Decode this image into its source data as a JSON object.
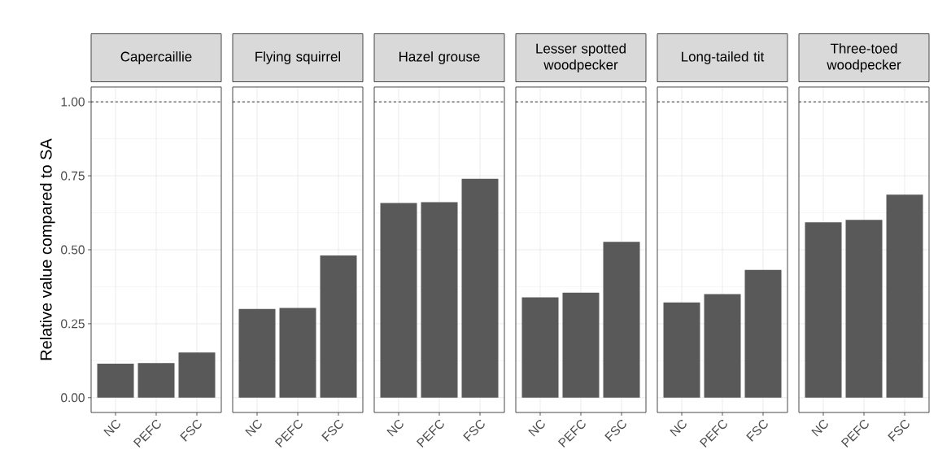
{
  "chart_data": [
    {
      "type": "bar",
      "title": "Capercaillie",
      "ylabel": "Relative value compared to SA",
      "categories": [
        "NC",
        "PEFC",
        "FSC"
      ],
      "values": [
        0.115,
        0.117,
        0.153
      ],
      "color": "#595959",
      "ylim": [
        -0.05,
        1.05
      ],
      "yticks": [
        {
          "value": 0,
          "label": "0.00"
        },
        {
          "value": 0.25,
          "label": "0.25"
        },
        {
          "value": 0.5,
          "label": "0.50"
        },
        {
          "value": 0.75,
          "label": "0.75"
        },
        {
          "value": 1,
          "label": "1.00"
        }
      ],
      "grid": true,
      "ref_lines": [
        {
          "axis": "y",
          "value": 1,
          "line_style": "dashed",
          "color": "#000000"
        }
      ]
    },
    {
      "type": "bar",
      "title": "Flying squirrel",
      "categories": [
        "NC",
        "PEFC",
        "FSC"
      ],
      "values": [
        0.3,
        0.303,
        0.481
      ],
      "color": "#595959",
      "ylim": [
        -0.05,
        1.05
      ],
      "yticks": [
        {
          "value": 0,
          "label": null
        },
        {
          "value": 0.25,
          "label": null
        },
        {
          "value": 0.5,
          "label": null
        },
        {
          "value": 0.75,
          "label": null
        },
        {
          "value": 1,
          "label": null
        }
      ],
      "grid": true,
      "tick_labels": "x",
      "ref_lines": [
        {
          "axis": "y",
          "value": 1,
          "line_style": "dashed",
          "color": "#000000"
        }
      ]
    },
    {
      "type": "bar",
      "title": "Hazel grouse",
      "categories": [
        "NC",
        "PEFC",
        "FSC"
      ],
      "values": [
        0.658,
        0.661,
        0.74
      ],
      "color": "#595959",
      "ylim": [
        -0.05,
        1.05
      ],
      "yticks": [
        {
          "value": 0,
          "label": null
        },
        {
          "value": 0.25,
          "label": null
        },
        {
          "value": 0.5,
          "label": null
        },
        {
          "value": 0.75,
          "label": null
        },
        {
          "value": 1,
          "label": null
        }
      ],
      "grid": true,
      "tick_labels": "x",
      "ref_lines": [
        {
          "axis": "y",
          "value": 1,
          "line_style": "dashed",
          "color": "#000000"
        }
      ]
    },
    {
      "type": "bar",
      "title": "Lesser spotted woodpecker",
      "categories": [
        "NC",
        "PEFC",
        "FSC"
      ],
      "values": [
        0.339,
        0.355,
        0.527
      ],
      "color": "#595959",
      "ylim": [
        -0.05,
        1.05
      ],
      "yticks": [
        {
          "value": 0,
          "label": null
        },
        {
          "value": 0.25,
          "label": null
        },
        {
          "value": 0.5,
          "label": null
        },
        {
          "value": 0.75,
          "label": null
        },
        {
          "value": 1,
          "label": null
        }
      ],
      "grid": true,
      "tick_labels": "x",
      "ref_lines": [
        {
          "axis": "y",
          "value": 1,
          "line_style": "dashed",
          "color": "#000000"
        }
      ]
    },
    {
      "type": "bar",
      "title": "Long-tailed tit",
      "categories": [
        "NC",
        "PEFC",
        "FSC"
      ],
      "values": [
        0.322,
        0.35,
        0.432
      ],
      "color": "#595959",
      "ylim": [
        -0.05,
        1.05
      ],
      "yticks": [
        {
          "value": 0,
          "label": null
        },
        {
          "value": 0.25,
          "label": null
        },
        {
          "value": 0.5,
          "label": null
        },
        {
          "value": 0.75,
          "label": null
        },
        {
          "value": 1,
          "label": null
        }
      ],
      "grid": true,
      "tick_labels": "x",
      "ref_lines": [
        {
          "axis": "y",
          "value": 1,
          "line_style": "dashed",
          "color": "#000000"
        }
      ]
    },
    {
      "type": "bar",
      "title": "Three-toed woodpecker",
      "categories": [
        "NC",
        "PEFC",
        "FSC"
      ],
      "values": [
        0.593,
        0.601,
        0.686
      ],
      "color": "#595959",
      "ylim": [
        -0.05,
        1.05
      ],
      "yticks": [
        {
          "value": 0,
          "label": null
        },
        {
          "value": 0.25,
          "label": null
        },
        {
          "value": 0.5,
          "label": null
        },
        {
          "value": 0.75,
          "label": null
        },
        {
          "value": 1,
          "label": null
        }
      ],
      "grid": true,
      "tick_labels": "x",
      "ref_lines": [
        {
          "axis": "y",
          "value": 1,
          "line_style": "dashed",
          "color": "#000000"
        }
      ]
    }
  ]
}
